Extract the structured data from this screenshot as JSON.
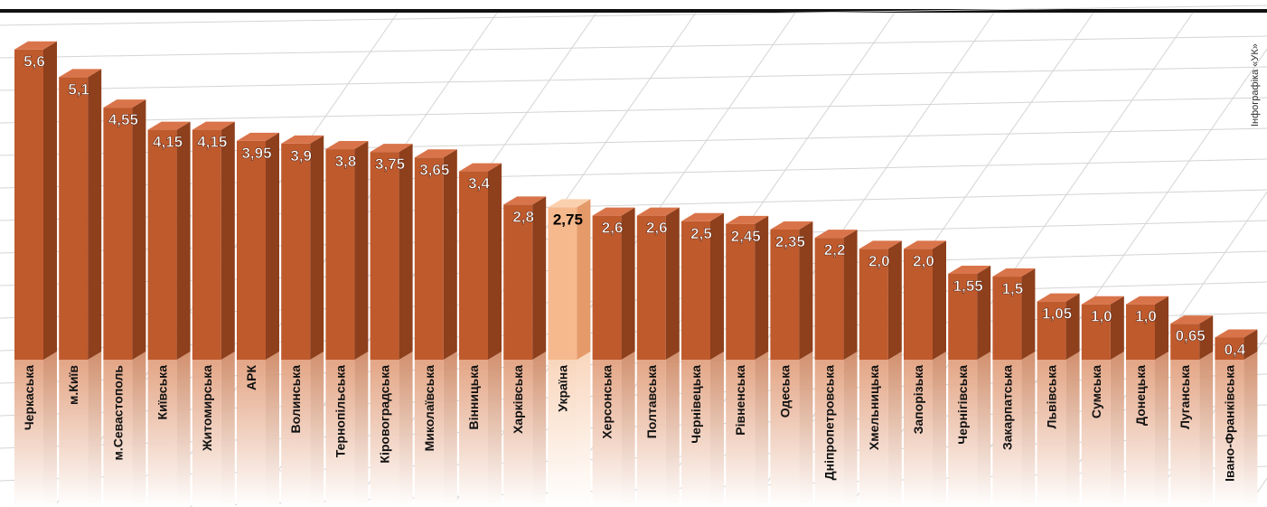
{
  "credit": "Інфографіка «УК»",
  "colors": {
    "bar_front": "#bf5a2d",
    "bar_side": "#8e3f1c",
    "bar_top": "#d9744a",
    "highlight_front": "#f6b98d",
    "highlight_side": "#e59a6a",
    "highlight_top": "#fbd0ae",
    "value_text": "#ffffff",
    "highlight_value_text": "#000000"
  },
  "chart_data": {
    "type": "bar",
    "title": "",
    "xlabel": "",
    "ylabel": "",
    "ylim": [
      0,
      6
    ],
    "highlight": "Україна",
    "categories": [
      "Черкаська",
      "м.Київ",
      "м.Севастополь",
      "Київська",
      "Житомирська",
      "АРК",
      "Волинська",
      "Тернопільська",
      "Кіровоградська",
      "Миколаївська",
      "Вінницька",
      "Харківська",
      "Україна",
      "Херсонська",
      "Полтавська",
      "Чернівецька",
      "Рівненська",
      "Одеська",
      "Дніпропетровська",
      "Хмельницька",
      "Запорізька",
      "Чернігівська",
      "Закарпатська",
      "Львівська",
      "Сумська",
      "Донецька",
      "Луганська",
      "Івано-Франківська"
    ],
    "values": [
      5.6,
      5.1,
      4.55,
      4.15,
      4.15,
      3.95,
      3.9,
      3.8,
      3.75,
      3.65,
      3.4,
      2.8,
      2.75,
      2.6,
      2.6,
      2.5,
      2.45,
      2.35,
      2.2,
      2.0,
      2.0,
      1.55,
      1.5,
      1.05,
      1.0,
      1.0,
      0.65,
      0.4
    ],
    "value_labels": [
      "5,6",
      "5,1",
      "4,55",
      "4,15",
      "4,15",
      "3,95",
      "3,9",
      "3,8",
      "3,75",
      "3,65",
      "3,4",
      "2,8",
      "2,75",
      "2,6",
      "2,6",
      "2,5",
      "2,45",
      "2,35",
      "2,2",
      "2,0",
      "2,0",
      "1,55",
      "1,5",
      "1,05",
      "1,0",
      "1,0",
      "0,65",
      "0,4"
    ]
  }
}
